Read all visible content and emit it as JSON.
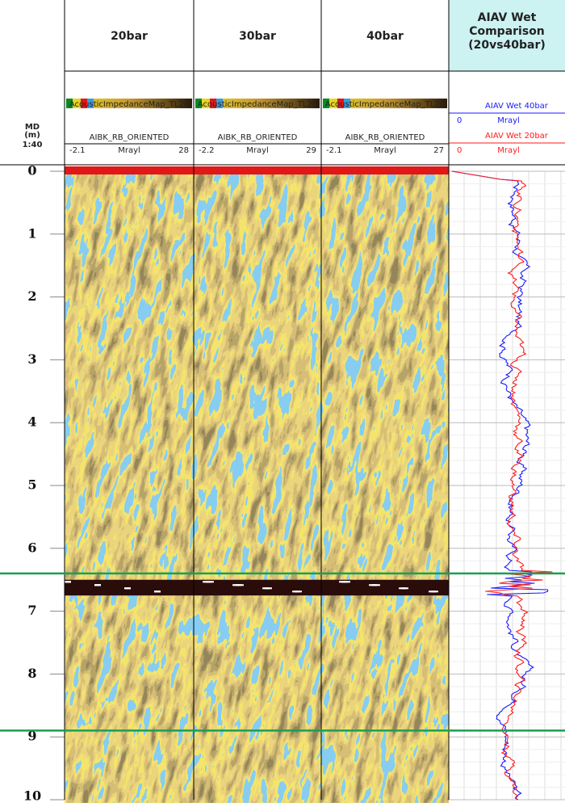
{
  "depth_header": {
    "md": "MD",
    "unit": "(m)",
    "scale": "1:40"
  },
  "depth_axis": {
    "lim": [
      0,
      10
    ],
    "ticks": [
      0,
      1,
      2,
      3,
      4,
      5,
      6,
      7,
      8,
      9,
      10
    ]
  },
  "tracks": [
    {
      "title": "20bar",
      "map": "AcousticImpedanceMap_TL20",
      "curve": "AIBK_RB_ORIENTED",
      "min": "-2.1",
      "unit": "Mrayl",
      "max": "28"
    },
    {
      "title": "30bar",
      "map": "AcousticImpedanceMap_TL20",
      "curve": "AIBK_RB_ORIENTED",
      "min": "-2.2",
      "unit": "Mrayl",
      "max": "29"
    },
    {
      "title": "40bar",
      "map": "AcousticImpedanceMap_TL20",
      "curve": "AIBK_RB_ORIENTED",
      "min": "-2.1",
      "unit": "Mrayl",
      "max": "27"
    }
  ],
  "comparison": {
    "title": [
      "AIAV Wet",
      "Comparison",
      "(20vs40bar)"
    ],
    "curves": [
      {
        "name": "AIAV Wet 40bar",
        "min": "0",
        "unit": "Mrayl",
        "color": "#1a1aff"
      },
      {
        "name": "AIAV Wet 20bar",
        "min": "0",
        "unit": "Mrayl",
        "color": "#ff1a1a"
      }
    ]
  },
  "horizons": {
    "depths": [
      6.4,
      8.9
    ],
    "color": "#1aa050"
  }
}
